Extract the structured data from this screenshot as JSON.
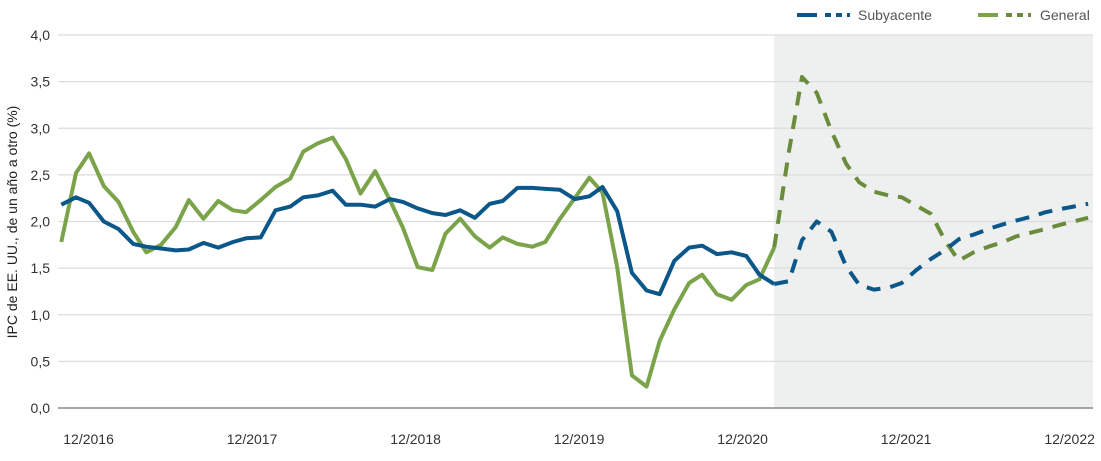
{
  "chart_data": {
    "type": "line",
    "title": "",
    "xlabel": "",
    "ylabel": "IPC de EE. UU., de un año a otro (%)",
    "ylim": [
      0,
      4.0
    ],
    "xlim": [
      2016.73,
      2023.06
    ],
    "yticks": [
      0,
      0.5,
      1.0,
      1.5,
      2.0,
      2.5,
      3.0,
      3.5,
      4.0
    ],
    "ytick_labels": [
      "0,0",
      "0,5",
      "1,0",
      "1,5",
      "2,0",
      "2,5",
      "3,0",
      "3,5",
      "4,0"
    ],
    "xticks": [
      2016.917,
      2017.917,
      2018.917,
      2019.917,
      2020.917,
      2021.917,
      2022.917
    ],
    "xtick_labels": [
      "12/2016",
      "12/2017",
      "12/2018",
      "12/2019",
      "12/2020",
      "12/2021",
      "12/2022"
    ],
    "grid": "horizontal",
    "legend_placement": "top-right",
    "forecast_shade_start": 2021.11,
    "shade_color": "#eeefef",
    "x_actual": [
      2016.75,
      2016.84,
      2016.92,
      2017.01,
      2017.1,
      2017.19,
      2017.27,
      2017.36,
      2017.45,
      2017.53,
      2017.62,
      2017.71,
      2017.8,
      2017.88,
      2017.97,
      2018.06,
      2018.15,
      2018.23,
      2018.32,
      2018.41,
      2018.49,
      2018.58,
      2018.67,
      2018.76,
      2018.84,
      2018.93,
      2019.02,
      2019.1,
      2019.19,
      2019.28,
      2019.37,
      2019.45,
      2019.54,
      2019.63,
      2019.71,
      2019.8,
      2019.89,
      2019.98,
      2020.06,
      2020.15,
      2020.24,
      2020.33,
      2020.41,
      2020.5,
      2020.59,
      2020.67,
      2020.76,
      2020.85,
      2020.94,
      2021.02,
      2021.11
    ],
    "x_forecast": [
      2021.11,
      2021.2,
      2021.28,
      2021.37,
      2021.46,
      2021.55,
      2021.63,
      2021.72,
      2021.81,
      2021.89,
      2021.98,
      2022.07,
      2022.16,
      2022.24,
      2022.33,
      2022.42,
      2022.51,
      2022.59,
      2022.68,
      2022.77,
      2022.85,
      2022.94,
      2023.03
    ],
    "series": [
      {
        "name": "Subyacente",
        "color": "#0b5789",
        "actual": [
          2.18,
          2.26,
          2.2,
          2.0,
          1.92,
          1.76,
          1.73,
          1.71,
          1.69,
          1.7,
          1.77,
          1.72,
          1.78,
          1.82,
          1.83,
          2.12,
          2.16,
          2.26,
          2.28,
          2.33,
          2.18,
          2.18,
          2.16,
          2.24,
          2.21,
          2.14,
          2.09,
          2.07,
          2.12,
          2.04,
          2.19,
          2.22,
          2.36,
          2.36,
          2.35,
          2.34,
          2.24,
          2.27,
          2.37,
          2.11,
          1.45,
          1.26,
          1.22,
          1.58,
          1.72,
          1.74,
          1.65,
          1.67,
          1.63,
          1.43,
          1.33
        ],
        "forecast": [
          1.33,
          1.36,
          1.8,
          2.0,
          1.89,
          1.52,
          1.32,
          1.27,
          1.29,
          1.34,
          1.48,
          1.6,
          1.7,
          1.81,
          1.86,
          1.92,
          1.97,
          2.01,
          2.05,
          2.1,
          2.13,
          2.16,
          2.19
        ]
      },
      {
        "name": "General",
        "color": "#7aa34a",
        "forecast_color": "#6a8c3c",
        "actual": [
          1.78,
          2.52,
          2.73,
          2.38,
          2.21,
          1.89,
          1.67,
          1.75,
          1.94,
          2.23,
          2.03,
          2.22,
          2.12,
          2.1,
          2.23,
          2.37,
          2.46,
          2.75,
          2.84,
          2.9,
          2.67,
          2.3,
          2.54,
          2.23,
          1.93,
          1.51,
          1.48,
          1.87,
          2.03,
          1.84,
          1.72,
          1.83,
          1.76,
          1.73,
          1.78,
          2.03,
          2.25,
          2.47,
          2.31,
          1.51,
          0.35,
          0.23,
          0.72,
          1.06,
          1.34,
          1.43,
          1.22,
          1.16,
          1.32,
          1.38,
          1.72
        ],
        "forecast": [
          1.72,
          2.75,
          3.55,
          3.38,
          2.97,
          2.62,
          2.42,
          2.32,
          2.28,
          2.26,
          2.17,
          2.08,
          1.78,
          1.58,
          1.67,
          1.73,
          1.78,
          1.84,
          1.88,
          1.92,
          1.96,
          2.0,
          2.04
        ]
      }
    ]
  }
}
